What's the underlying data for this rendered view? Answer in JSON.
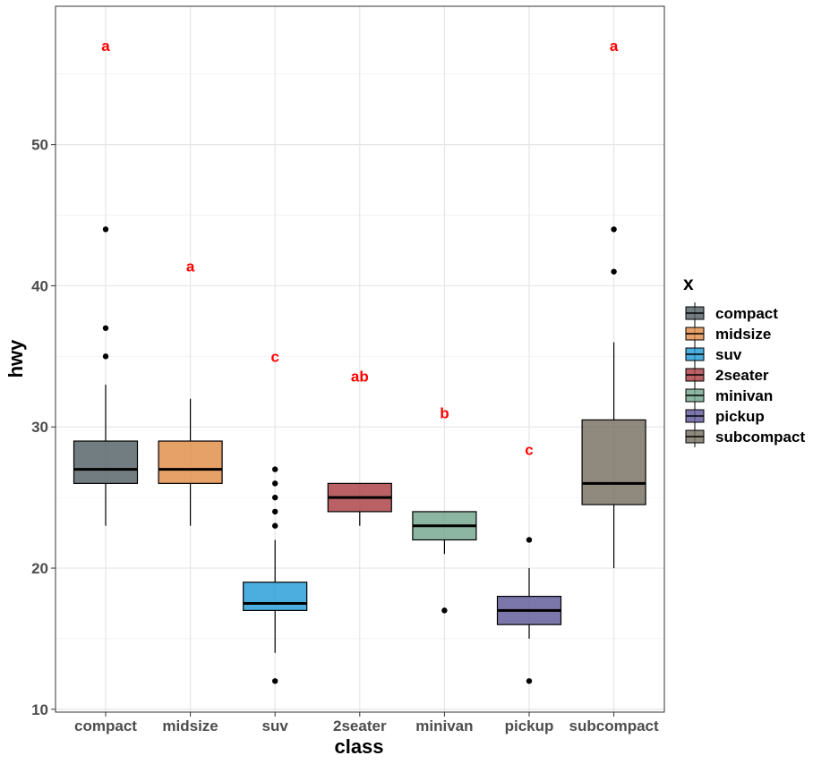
{
  "chart_data": {
    "type": "box",
    "xlabel": "class",
    "ylabel": "hwy",
    "ylim": [
      9.8,
      59.8
    ],
    "yticks": [
      10,
      20,
      30,
      40,
      50
    ],
    "grid": true,
    "legend": {
      "title": "x",
      "position": "right"
    },
    "colors": {
      "letters": "#ff0000",
      "median": "#000000",
      "outlier": "#000000"
    },
    "categories": [
      "compact",
      "midsize",
      "suv",
      "2seater",
      "minivan",
      "pickup",
      "subcompact"
    ],
    "boxes": [
      {
        "name": "compact",
        "color": "#4f5d63",
        "lower_whisker": 23,
        "q1": 26,
        "median": 27,
        "q3": 29,
        "upper_whisker": 33,
        "outliers": [
          35,
          37,
          44
        ],
        "letter": "a",
        "letter_y": 57
      },
      {
        "name": "midsize",
        "color": "#e08a43",
        "lower_whisker": 23,
        "q1": 26,
        "median": 27,
        "q3": 29,
        "upper_whisker": 32,
        "outliers": [],
        "letter": "a",
        "letter_y": 41.4
      },
      {
        "name": "suv",
        "color": "#1f9ad6",
        "lower_whisker": 14,
        "q1": 17,
        "median": 17.5,
        "q3": 19,
        "upper_whisker": 22,
        "outliers": [
          12,
          23,
          24,
          25,
          26,
          27
        ],
        "letter": "c",
        "letter_y": 35
      },
      {
        "name": "2seater",
        "color": "#a8393d",
        "lower_whisker": 23,
        "q1": 24,
        "median": 25,
        "q3": 26,
        "upper_whisker": 26,
        "outliers": [],
        "letter": "ab",
        "letter_y": 33.6
      },
      {
        "name": "minivan",
        "color": "#6fa489",
        "lower_whisker": 21,
        "q1": 22,
        "median": 23,
        "q3": 24,
        "upper_whisker": 24,
        "outliers": [
          17
        ],
        "letter": "b",
        "letter_y": 31
      },
      {
        "name": "pickup",
        "color": "#5b5596",
        "lower_whisker": 15,
        "q1": 16,
        "median": 17,
        "q3": 18,
        "upper_whisker": 20,
        "outliers": [
          12,
          22
        ],
        "letter": "c",
        "letter_y": 28.4
      },
      {
        "name": "subcompact",
        "color": "#736d5c",
        "lower_whisker": 20,
        "q1": 24.5,
        "median": 26,
        "q3": 30.5,
        "upper_whisker": 36,
        "outliers": [
          41,
          44
        ],
        "letter": "a",
        "letter_y": 57
      }
    ]
  }
}
